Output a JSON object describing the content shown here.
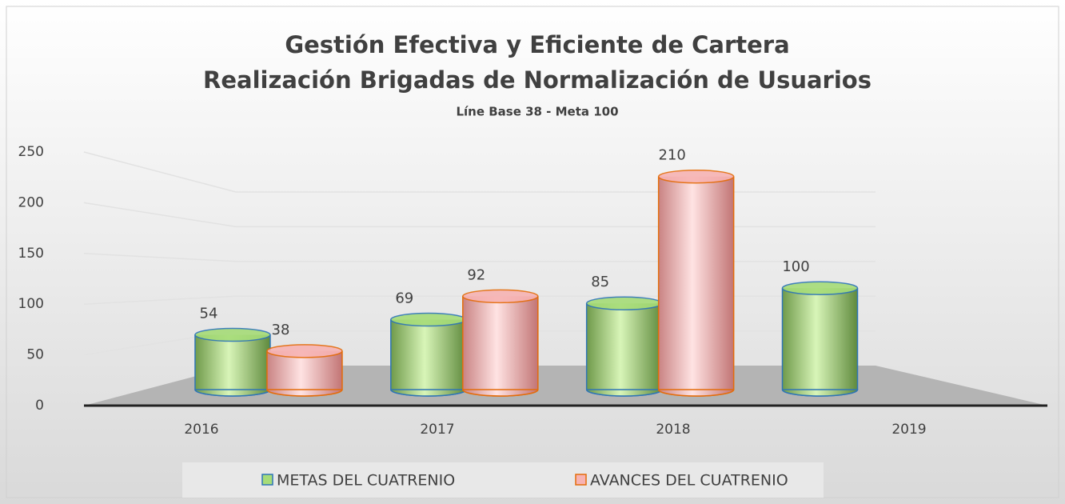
{
  "chart_data": {
    "type": "bar3d",
    "title": "Gestión Efectiva y Eficiente de Cartera",
    "title2": "Realización Brigadas de Normalización de Usuarios",
    "subtitle": "Líne Base 38 - Meta 100",
    "categories": [
      "2016",
      "2017",
      "2018",
      "2019"
    ],
    "series": [
      {
        "name": "METAS DEL CUATRENIO",
        "color": "#a6dc78",
        "edgecolor": "#2e75b6",
        "values": [
          54,
          69,
          85,
          100
        ]
      },
      {
        "name": "AVANCES DEL  CUATRENIO",
        "color": "#f7b3b3",
        "edgecolor": "#e46c0a",
        "values": [
          38,
          92,
          210,
          null
        ]
      }
    ],
    "ylim": [
      0,
      250
    ],
    "yticks": [
      0,
      50,
      100,
      150,
      200,
      250
    ],
    "grid": true,
    "legend": "bottom"
  }
}
